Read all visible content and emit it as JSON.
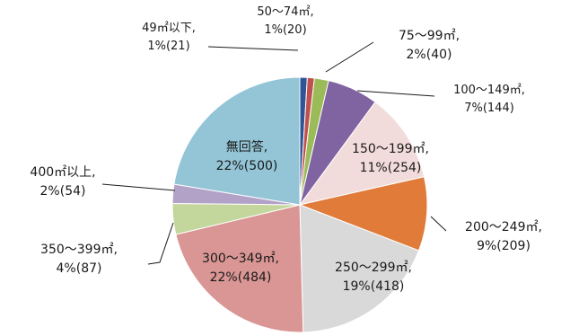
{
  "chart_data": {
    "type": "pie",
    "title": "",
    "start_angle_deg": 0,
    "direction": "clockwise",
    "slices": [
      {
        "label": "49㎡以下",
        "value": 21,
        "percent": "1%",
        "color": "#2f5597"
      },
      {
        "label": "50～74㎡",
        "value": 20,
        "percent": "1%",
        "color": "#c0504d"
      },
      {
        "label": "75～99㎡",
        "value": 40,
        "percent": "2%",
        "color": "#9bbb59"
      },
      {
        "label": "100～149㎡",
        "value": 144,
        "percent": "7%",
        "color": "#8064a2"
      },
      {
        "label": "150～199㎡",
        "value": 254,
        "percent": "11%",
        "color": "#f2dcdb"
      },
      {
        "label": "200～249㎡",
        "value": 209,
        "percent": "9%",
        "color": "#e07b39"
      },
      {
        "label": "250～299㎡",
        "value": 418,
        "percent": "19%",
        "color": "#d9d9d9"
      },
      {
        "label": "300～349㎡",
        "value": 484,
        "percent": "22%",
        "color": "#d99694"
      },
      {
        "label": "350～399㎡",
        "value": 87,
        "percent": "4%",
        "color": "#c3d69b"
      },
      {
        "label": "400㎡以上",
        "value": 54,
        "percent": "2%",
        "color": "#b3a2c7"
      },
      {
        "label": "無回答",
        "value": 500,
        "percent": "22%",
        "color": "#93c5d7"
      }
    ]
  }
}
